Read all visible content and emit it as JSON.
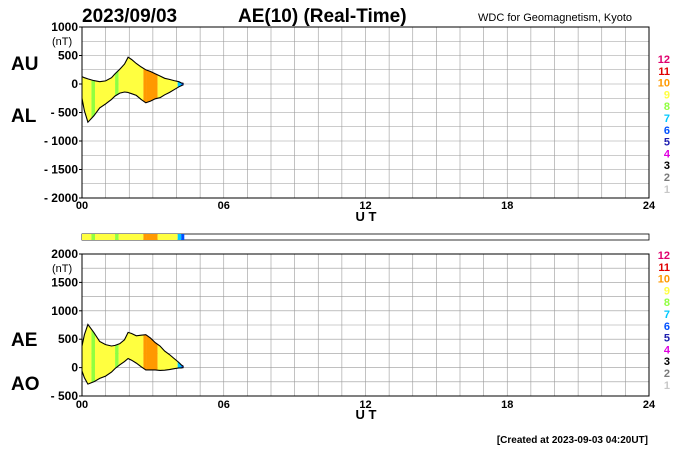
{
  "header": {
    "date": "2023/09/03",
    "title": "AE(10) (Real-Time)",
    "source": "WDC for Geomagnetism, Kyoto"
  },
  "footer": {
    "created": "[Created at 2023-09-03 04:20UT]"
  },
  "colors": {
    "curve": "#000000",
    "fill_base": "#ffff00",
    "grid": "#9a9a9a",
    "frame": "#000000",
    "station_scale": [
      "#c8c8c8",
      "#7a7a7a",
      "#000000",
      "#e000e0",
      "#2020b0",
      "#0050ff",
      "#00c8ff",
      "#90ff40",
      "#ffff40",
      "#ff9900",
      "#e00000",
      "#e0006e"
    ]
  },
  "station_levels": [
    "1",
    "2",
    "3",
    "4",
    "5",
    "6",
    "7",
    "8",
    "9",
    "10",
    "11",
    "12"
  ],
  "station_segments": [
    {
      "from": 0.0,
      "to": 0.4,
      "level": "9"
    },
    {
      "from": 0.4,
      "to": 0.55,
      "level": "8"
    },
    {
      "from": 0.55,
      "to": 1.4,
      "level": "9"
    },
    {
      "from": 1.4,
      "to": 1.55,
      "level": "8"
    },
    {
      "from": 1.55,
      "to": 2.6,
      "level": "9"
    },
    {
      "from": 2.6,
      "to": 2.75,
      "level": "10"
    },
    {
      "from": 2.75,
      "to": 3.2,
      "level": "10"
    },
    {
      "from": 3.2,
      "to": 4.05,
      "level": "9"
    },
    {
      "from": 4.05,
      "to": 4.2,
      "level": "7"
    },
    {
      "from": 4.2,
      "to": 4.33,
      "level": "6"
    }
  ],
  "chart_data": [
    {
      "type": "area",
      "name": "AU/AL",
      "labels_left": [
        "AU",
        "AL"
      ],
      "xlabel": "U T",
      "xlim": [
        0,
        24
      ],
      "ylim": [
        -2000,
        1000
      ],
      "yunit": "(nT)",
      "yticks": [
        "1000",
        "500",
        "0",
        "- 500",
        "- 1000",
        "- 1500",
        "- 2000"
      ],
      "yticks_values": [
        1000,
        500,
        0,
        -500,
        -1000,
        -1500,
        -2000
      ],
      "xticks": [
        "00",
        "06",
        "12",
        "18",
        "24"
      ],
      "xticks_values": [
        0,
        6,
        12,
        18,
        24
      ],
      "grid": true,
      "series": [
        {
          "name": "AU",
          "x": [
            0,
            0.1,
            0.25,
            0.5,
            0.75,
            1,
            1.25,
            1.4,
            1.6,
            1.8,
            1.95,
            2.1,
            2.3,
            2.5,
            2.7,
            2.9,
            3.1,
            3.3,
            3.5,
            3.7,
            3.9,
            4.1,
            4.2,
            4.3
          ],
          "values": [
            130,
            110,
            90,
            60,
            40,
            55,
            110,
            180,
            260,
            350,
            470,
            430,
            360,
            300,
            250,
            220,
            180,
            140,
            100,
            80,
            60,
            40,
            20,
            10
          ]
        },
        {
          "name": "AL",
          "x": [
            0,
            0.1,
            0.25,
            0.5,
            0.75,
            1,
            1.25,
            1.4,
            1.6,
            1.8,
            1.95,
            2.1,
            2.3,
            2.5,
            2.7,
            2.9,
            3.1,
            3.3,
            3.5,
            3.7,
            3.9,
            4.1,
            4.2,
            4.3
          ],
          "values": [
            -250,
            -470,
            -670,
            -560,
            -420,
            -350,
            -270,
            -210,
            -160,
            -140,
            -150,
            -170,
            -200,
            -270,
            -330,
            -300,
            -260,
            -240,
            -190,
            -150,
            -100,
            -50,
            -30,
            -10
          ]
        }
      ]
    },
    {
      "type": "area",
      "name": "AE/AO",
      "labels_left": [
        "AE",
        "AO"
      ],
      "xlabel": "U T",
      "xlim": [
        0,
        24
      ],
      "ylim": [
        -500,
        2000
      ],
      "yunit": "(nT)",
      "yticks": [
        "2000",
        "1500",
        "1000",
        "500",
        "0",
        "- 500"
      ],
      "yticks_values": [
        2000,
        1500,
        1000,
        500,
        0,
        -500
      ],
      "xticks": [
        "00",
        "06",
        "12",
        "18",
        "24"
      ],
      "xticks_values": [
        0,
        6,
        12,
        18,
        24
      ],
      "grid": true,
      "series": [
        {
          "name": "AE",
          "x": [
            0,
            0.1,
            0.25,
            0.5,
            0.75,
            1,
            1.25,
            1.4,
            1.6,
            1.8,
            1.95,
            2.1,
            2.3,
            2.5,
            2.7,
            2.9,
            3.1,
            3.3,
            3.5,
            3.7,
            3.9,
            4.1,
            4.2,
            4.3
          ],
          "values": [
            380,
            580,
            760,
            620,
            460,
            405,
            380,
            390,
            420,
            490,
            620,
            600,
            560,
            570,
            580,
            520,
            440,
            380,
            290,
            230,
            160,
            90,
            50,
            20
          ]
        },
        {
          "name": "AO",
          "x": [
            0,
            0.1,
            0.25,
            0.5,
            0.75,
            1,
            1.25,
            1.4,
            1.6,
            1.8,
            1.95,
            2.1,
            2.3,
            2.5,
            2.7,
            2.9,
            3.1,
            3.3,
            3.5,
            3.7,
            3.9,
            4.1,
            4.2,
            4.3
          ],
          "values": [
            -60,
            -180,
            -290,
            -250,
            -190,
            -150,
            -80,
            -15,
            50,
            105,
            160,
            130,
            80,
            15,
            -40,
            -40,
            -40,
            -50,
            -45,
            -35,
            -20,
            -5,
            -5,
            0
          ]
        }
      ]
    }
  ]
}
